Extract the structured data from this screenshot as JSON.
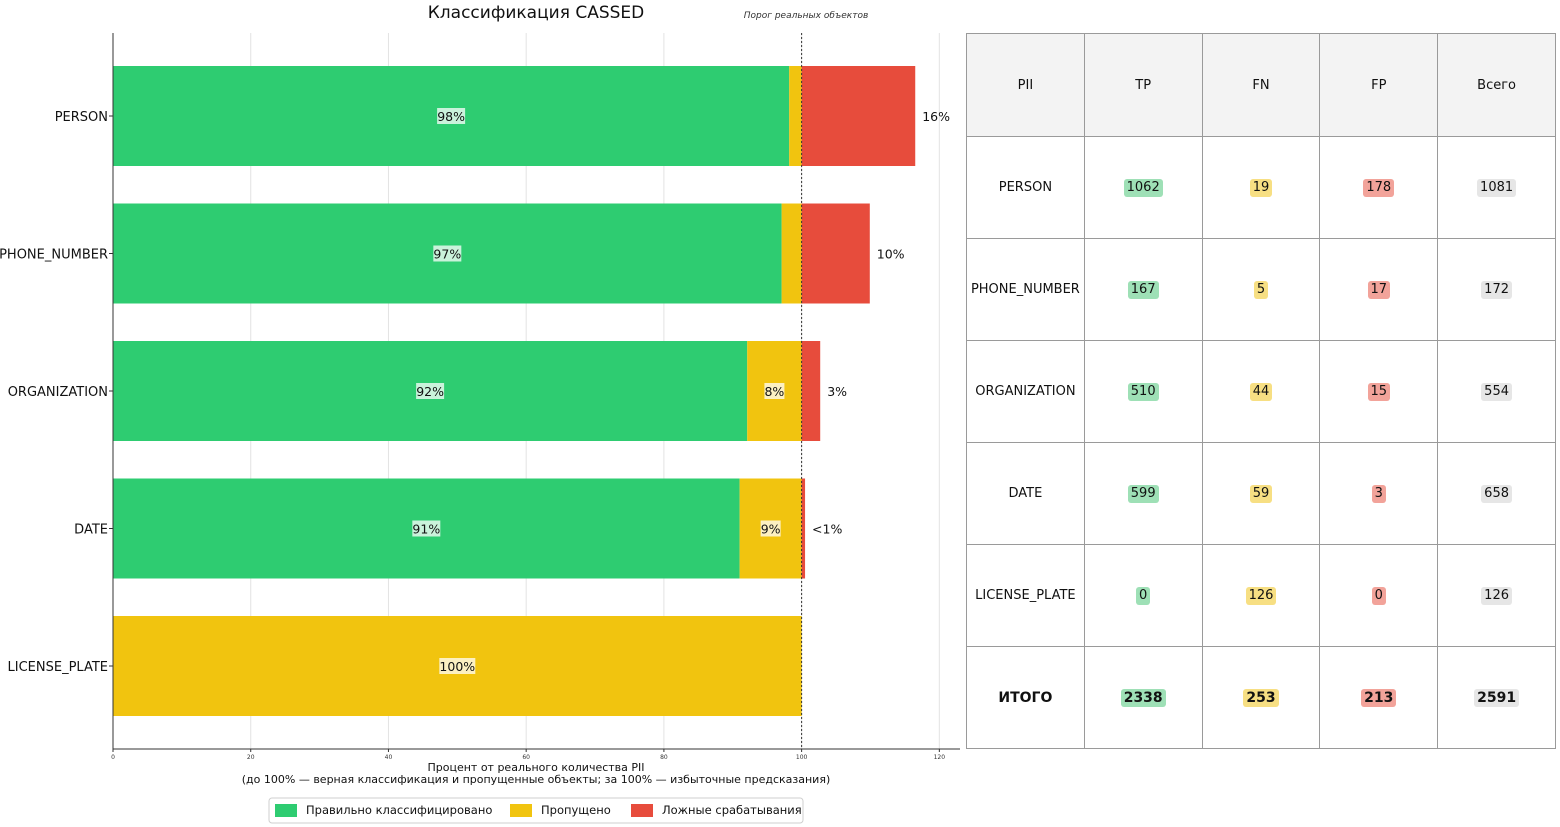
{
  "chart_data": {
    "type": "bar",
    "orientation": "horizontal",
    "stacked": true,
    "title": "Классификация CASSED",
    "threshold_label": "Порог реальных объектов",
    "threshold_value": 100,
    "xlabel": "Процент от реального количества PII",
    "xlabel_sub": "(до 100% — верная классификация и пропущенные объекты; за 100% — избыточные предсказания)",
    "xlim": [
      0,
      123
    ],
    "xticks": [
      0,
      20,
      40,
      60,
      80,
      100,
      120
    ],
    "grid": true,
    "categories": [
      "PERSON",
      "PHONE_NUMBER",
      "ORGANIZATION",
      "DATE",
      "LICENSE_PLATE"
    ],
    "series": [
      {
        "name": "Правильно классифицировано",
        "color": "#2ecc71",
        "values": [
          98.2,
          97.1,
          92.1,
          91.0,
          0
        ]
      },
      {
        "name": "Пропущено",
        "color": "#f1c40f",
        "values": [
          1.8,
          2.9,
          7.9,
          9.0,
          100
        ]
      },
      {
        "name": "Ложные срабатывания",
        "color": "#e74c3c",
        "values": [
          16.5,
          9.9,
          2.7,
          0.5,
          0
        ]
      }
    ],
    "tp_labels": [
      "98%",
      "97%",
      "92%",
      "91%",
      ""
    ],
    "fn_labels": [
      "",
      "",
      "8%",
      "9%",
      "100%"
    ],
    "fp_labels": [
      "16%",
      "10%",
      "3%",
      "<1%",
      ""
    ],
    "legend_position": "bottom-center"
  },
  "table": {
    "headers": [
      "PII",
      "TP",
      "FN",
      "FP",
      "Всего"
    ],
    "rows": [
      {
        "pii": "PERSON",
        "tp": "1062",
        "fn": "19",
        "fp": "178",
        "total": "1081"
      },
      {
        "pii": "PHONE_NUMBER",
        "tp": "167",
        "fn": "5",
        "fp": "17",
        "total": "172"
      },
      {
        "pii": "ORGANIZATION",
        "tp": "510",
        "fn": "44",
        "fp": "15",
        "total": "554"
      },
      {
        "pii": "DATE",
        "tp": "599",
        "fn": "59",
        "fp": "3",
        "total": "658"
      },
      {
        "pii": "LICENSE_PLATE",
        "tp": "0",
        "fn": "126",
        "fp": "0",
        "total": "126"
      }
    ],
    "total_row": {
      "pii": "ИТОГО",
      "tp": "2338",
      "fn": "253",
      "fp": "213",
      "total": "2591"
    }
  }
}
